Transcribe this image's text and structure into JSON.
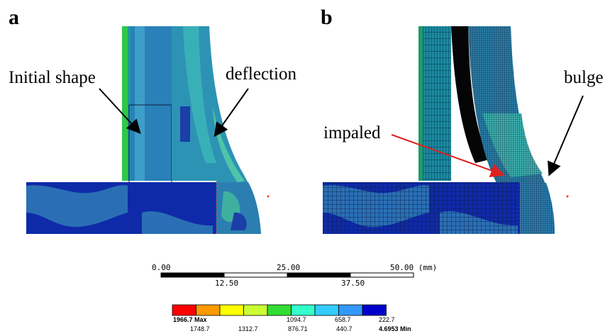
{
  "panels": {
    "a": {
      "letter": "a",
      "initial_shape_label": "Initial shape",
      "deflection_label": "deflection"
    },
    "b": {
      "letter": "b",
      "impaled_label": "impaled",
      "bulge_label": "bulge"
    }
  },
  "scale_bar": {
    "unit": "(mm)",
    "top_ticks": [
      "0.00",
      "25.00",
      "50.00 (mm)"
    ],
    "bottom_ticks": [
      "12.50",
      "37.50"
    ]
  },
  "legend": {
    "colors": [
      "#ff0000",
      "#ff9900",
      "#ffff00",
      "#ccff33",
      "#33dd33",
      "#33ffcc",
      "#33ccff",
      "#3399ff",
      "#0000cc"
    ],
    "max_label": "1966.7 Max",
    "min_label": "4.6953 Min",
    "top_values": [
      "1094.7",
      "658.7",
      "222.7"
    ],
    "bottom_values": [
      "1748.7",
      "1312.7",
      "876.71",
      "440.7"
    ]
  },
  "arrow_colors": {
    "black": "#000000",
    "red": "#e02020"
  }
}
